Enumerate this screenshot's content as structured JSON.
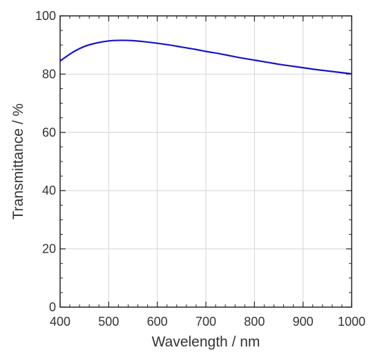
{
  "chart_data": {
    "type": "line",
    "title": "",
    "xlabel": "Wavelength / nm",
    "ylabel": "Transmittance / %",
    "xlim": [
      400,
      1000
    ],
    "ylim": [
      0,
      100
    ],
    "x_ticks": [
      400,
      500,
      600,
      700,
      800,
      900,
      1000
    ],
    "y_ticks": [
      0,
      20,
      40,
      60,
      80,
      100
    ],
    "x_tick_labels": [
      "400",
      "500",
      "600",
      "700",
      "800",
      "900",
      "1000"
    ],
    "y_tick_labels": [
      "0",
      "20",
      "40",
      "60",
      "80",
      "100"
    ],
    "grid": true,
    "legend": "none",
    "series": [
      {
        "color": "#1414c8",
        "x": [
          400,
          425,
          450,
          475,
          500,
          525,
          550,
          575,
          600,
          625,
          650,
          675,
          700,
          725,
          750,
          775,
          800,
          825,
          850,
          875,
          900,
          925,
          950,
          975,
          1000
        ],
        "y": [
          84.5,
          87.4,
          89.5,
          90.7,
          91.4,
          91.6,
          91.5,
          91.1,
          90.6,
          90.0,
          89.3,
          88.6,
          87.8,
          87.1,
          86.3,
          85.5,
          84.8,
          84.1,
          83.4,
          82.8,
          82.2,
          81.6,
          81.1,
          80.6,
          80.1
        ]
      }
    ]
  }
}
